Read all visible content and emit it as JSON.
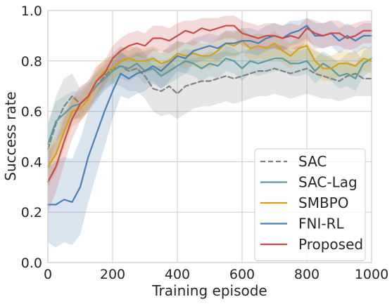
{
  "chart_data": {
    "type": "line",
    "xlabel": "Training episode",
    "ylabel": "Success rate",
    "xlim": [
      0,
      1000
    ],
    "ylim": [
      0.0,
      1.0
    ],
    "xticks": [
      0,
      200,
      400,
      600,
      800,
      1000
    ],
    "xtick_labels": [
      "0",
      "200",
      "400",
      "600",
      "800",
      "1000"
    ],
    "yticks": [
      0.0,
      0.2,
      0.4,
      0.6,
      0.8,
      1.0
    ],
    "ytick_labels": [
      "0.0",
      "0.2",
      "0.4",
      "0.6",
      "0.8",
      "1.0"
    ],
    "grid": true,
    "legend": {
      "position": "lower-right",
      "entries": [
        "SAC",
        "SAC-Lag",
        "SMBPO",
        "FNI-RL",
        "Proposed"
      ]
    },
    "x": [
      0,
      25,
      50,
      75,
      100,
      125,
      150,
      175,
      200,
      225,
      250,
      275,
      300,
      325,
      350,
      375,
      400,
      425,
      450,
      475,
      500,
      525,
      550,
      575,
      600,
      625,
      650,
      675,
      700,
      725,
      750,
      775,
      800,
      825,
      850,
      875,
      900,
      925,
      950,
      975,
      1000
    ],
    "series": [
      {
        "name": "SAC",
        "color": "#808080",
        "dash": "dashed",
        "values": [
          0.45,
          0.55,
          0.62,
          0.66,
          0.63,
          0.66,
          0.7,
          0.74,
          0.77,
          0.78,
          0.76,
          0.77,
          0.74,
          0.69,
          0.68,
          0.7,
          0.67,
          0.7,
          0.71,
          0.72,
          0.72,
          0.73,
          0.74,
          0.73,
          0.74,
          0.75,
          0.76,
          0.76,
          0.77,
          0.76,
          0.75,
          0.76,
          0.77,
          0.75,
          0.74,
          0.73,
          0.72,
          0.74,
          0.75,
          0.73,
          0.73
        ],
        "lower": [
          0.36,
          0.44,
          0.5,
          0.57,
          0.57,
          0.6,
          0.64,
          0.69,
          0.71,
          0.7,
          0.68,
          0.68,
          0.65,
          0.6,
          0.58,
          0.59,
          0.57,
          0.59,
          0.61,
          0.62,
          0.62,
          0.63,
          0.64,
          0.63,
          0.64,
          0.65,
          0.66,
          0.66,
          0.67,
          0.66,
          0.65,
          0.66,
          0.67,
          0.66,
          0.65,
          0.65,
          0.64,
          0.65,
          0.66,
          0.66,
          0.66
        ],
        "upper": [
          0.54,
          0.66,
          0.73,
          0.75,
          0.69,
          0.72,
          0.76,
          0.79,
          0.83,
          0.86,
          0.84,
          0.86,
          0.83,
          0.78,
          0.78,
          0.81,
          0.77,
          0.81,
          0.81,
          0.82,
          0.82,
          0.83,
          0.84,
          0.83,
          0.84,
          0.85,
          0.86,
          0.86,
          0.87,
          0.86,
          0.85,
          0.86,
          0.87,
          0.84,
          0.83,
          0.81,
          0.8,
          0.83,
          0.84,
          0.8,
          0.8
        ]
      },
      {
        "name": "SAC-Lag",
        "color": "#5b9aa0",
        "dash": "solid",
        "values": [
          0.47,
          0.56,
          0.59,
          0.62,
          0.63,
          0.66,
          0.7,
          0.73,
          0.76,
          0.78,
          0.77,
          0.79,
          0.76,
          0.77,
          0.74,
          0.76,
          0.78,
          0.8,
          0.79,
          0.77,
          0.79,
          0.78,
          0.81,
          0.8,
          0.77,
          0.8,
          0.79,
          0.8,
          0.81,
          0.81,
          0.79,
          0.79,
          0.8,
          0.76,
          0.79,
          0.77,
          0.74,
          0.75,
          0.73,
          0.79,
          0.81
        ],
        "lower": [
          0.38,
          0.48,
          0.52,
          0.56,
          0.58,
          0.61,
          0.65,
          0.68,
          0.71,
          0.73,
          0.72,
          0.74,
          0.71,
          0.72,
          0.69,
          0.71,
          0.73,
          0.75,
          0.74,
          0.72,
          0.74,
          0.73,
          0.76,
          0.75,
          0.72,
          0.75,
          0.74,
          0.75,
          0.76,
          0.76,
          0.74,
          0.74,
          0.75,
          0.71,
          0.74,
          0.72,
          0.69,
          0.7,
          0.68,
          0.74,
          0.76
        ],
        "upper": [
          0.56,
          0.64,
          0.66,
          0.68,
          0.68,
          0.71,
          0.75,
          0.78,
          0.81,
          0.83,
          0.82,
          0.84,
          0.81,
          0.82,
          0.79,
          0.81,
          0.83,
          0.85,
          0.84,
          0.82,
          0.84,
          0.83,
          0.86,
          0.85,
          0.82,
          0.85,
          0.84,
          0.85,
          0.86,
          0.86,
          0.84,
          0.84,
          0.85,
          0.81,
          0.84,
          0.82,
          0.79,
          0.8,
          0.78,
          0.84,
          0.86
        ]
      },
      {
        "name": "SMBPO",
        "color": "#d4a017",
        "dash": "solid",
        "values": [
          0.38,
          0.43,
          0.52,
          0.6,
          0.61,
          0.65,
          0.72,
          0.76,
          0.77,
          0.8,
          0.81,
          0.8,
          0.8,
          0.81,
          0.79,
          0.8,
          0.83,
          0.82,
          0.83,
          0.82,
          0.82,
          0.84,
          0.87,
          0.86,
          0.88,
          0.85,
          0.86,
          0.85,
          0.87,
          0.84,
          0.82,
          0.85,
          0.86,
          0.8,
          0.77,
          0.77,
          0.79,
          0.79,
          0.78,
          0.81,
          0.8
        ],
        "lower": [
          0.3,
          0.36,
          0.45,
          0.54,
          0.56,
          0.6,
          0.67,
          0.71,
          0.72,
          0.75,
          0.76,
          0.75,
          0.75,
          0.76,
          0.74,
          0.75,
          0.78,
          0.77,
          0.78,
          0.77,
          0.77,
          0.79,
          0.82,
          0.81,
          0.83,
          0.8,
          0.81,
          0.8,
          0.82,
          0.79,
          0.77,
          0.8,
          0.81,
          0.75,
          0.72,
          0.72,
          0.74,
          0.74,
          0.73,
          0.76,
          0.75
        ],
        "upper": [
          0.46,
          0.5,
          0.59,
          0.66,
          0.66,
          0.7,
          0.77,
          0.81,
          0.82,
          0.85,
          0.86,
          0.85,
          0.85,
          0.86,
          0.84,
          0.85,
          0.88,
          0.87,
          0.88,
          0.87,
          0.87,
          0.89,
          0.92,
          0.91,
          0.93,
          0.9,
          0.91,
          0.9,
          0.92,
          0.89,
          0.87,
          0.9,
          0.91,
          0.85,
          0.82,
          0.82,
          0.84,
          0.84,
          0.83,
          0.86,
          0.85
        ]
      },
      {
        "name": "FNI-RL",
        "color": "#4a7fb5",
        "dash": "solid",
        "values": [
          0.23,
          0.23,
          0.25,
          0.24,
          0.3,
          0.42,
          0.51,
          0.6,
          0.68,
          0.75,
          0.73,
          0.75,
          0.76,
          0.78,
          0.76,
          0.79,
          0.82,
          0.81,
          0.84,
          0.85,
          0.86,
          0.85,
          0.87,
          0.87,
          0.88,
          0.88,
          0.87,
          0.89,
          0.9,
          0.89,
          0.91,
          0.92,
          0.94,
          0.9,
          0.9,
          0.91,
          0.88,
          0.9,
          0.88,
          0.9,
          0.9
        ],
        "lower": [
          0.08,
          0.06,
          0.08,
          0.07,
          0.11,
          0.24,
          0.35,
          0.46,
          0.57,
          0.66,
          0.65,
          0.67,
          0.68,
          0.71,
          0.69,
          0.72,
          0.76,
          0.75,
          0.79,
          0.8,
          0.81,
          0.8,
          0.82,
          0.82,
          0.83,
          0.83,
          0.82,
          0.84,
          0.85,
          0.84,
          0.86,
          0.87,
          0.89,
          0.85,
          0.85,
          0.86,
          0.83,
          0.85,
          0.83,
          0.85,
          0.85
        ],
        "upper": [
          0.38,
          0.4,
          0.42,
          0.41,
          0.49,
          0.6,
          0.67,
          0.74,
          0.79,
          0.84,
          0.81,
          0.83,
          0.84,
          0.85,
          0.83,
          0.86,
          0.88,
          0.87,
          0.89,
          0.9,
          0.91,
          0.9,
          0.92,
          0.92,
          0.93,
          0.93,
          0.92,
          0.94,
          0.95,
          0.94,
          0.96,
          0.96,
          0.97,
          0.95,
          0.95,
          0.96,
          0.93,
          0.95,
          0.93,
          0.95,
          0.95
        ]
      },
      {
        "name": "Proposed",
        "color": "#c84a4a",
        "dash": "solid",
        "values": [
          0.32,
          0.38,
          0.48,
          0.57,
          0.63,
          0.66,
          0.72,
          0.75,
          0.81,
          0.84,
          0.86,
          0.87,
          0.86,
          0.89,
          0.89,
          0.88,
          0.9,
          0.92,
          0.91,
          0.93,
          0.92,
          0.93,
          0.94,
          0.94,
          0.91,
          0.9,
          0.89,
          0.9,
          0.9,
          0.89,
          0.9,
          0.89,
          0.93,
          0.91,
          0.9,
          0.91,
          0.91,
          0.89,
          0.9,
          0.92,
          0.92
        ],
        "lower": [
          0.2,
          0.28,
          0.39,
          0.49,
          0.56,
          0.6,
          0.66,
          0.7,
          0.76,
          0.79,
          0.81,
          0.82,
          0.81,
          0.84,
          0.84,
          0.83,
          0.85,
          0.87,
          0.86,
          0.88,
          0.87,
          0.88,
          0.89,
          0.89,
          0.86,
          0.85,
          0.84,
          0.85,
          0.85,
          0.84,
          0.85,
          0.84,
          0.88,
          0.86,
          0.85,
          0.86,
          0.86,
          0.84,
          0.85,
          0.87,
          0.87
        ],
        "upper": [
          0.44,
          0.48,
          0.57,
          0.65,
          0.7,
          0.72,
          0.78,
          0.8,
          0.86,
          0.89,
          0.91,
          0.92,
          0.91,
          0.94,
          0.94,
          0.93,
          0.95,
          0.96,
          0.96,
          0.97,
          0.97,
          0.97,
          0.98,
          0.98,
          0.96,
          0.95,
          0.94,
          0.95,
          0.95,
          0.94,
          0.95,
          0.94,
          0.97,
          0.96,
          0.95,
          0.96,
          0.96,
          0.94,
          0.95,
          0.96,
          0.96
        ]
      }
    ]
  }
}
